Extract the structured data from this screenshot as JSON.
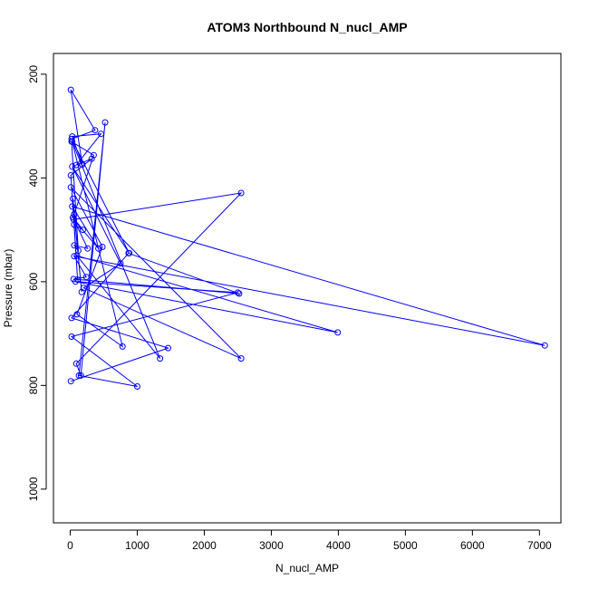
{
  "chart_data": {
    "type": "line",
    "title": "ATOM3 Northbound N_nucl_AMP",
    "xlabel": "N_nucl_AMP",
    "ylabel": "Pressure (mbar)",
    "xlim": [
      -250,
      7320
    ],
    "ylim": [
      1065,
      160
    ],
    "y_reversed": true,
    "x_ticks": [
      0,
      1000,
      2000,
      3000,
      4000,
      5000,
      6000,
      7000
    ],
    "y_ticks": [
      200,
      400,
      600,
      800,
      1000
    ],
    "grid": false,
    "legend": "none",
    "series_color": "#0000ff",
    "series": [
      {
        "x": [
          10,
          1460,
          20,
          870,
          2520,
          50,
          240,
          60,
          7080,
          30,
          420,
          50,
          2550,
          90,
          160,
          520,
          130,
          1000,
          20,
          2500,
          80,
          3990,
          100,
          1340,
          30,
          780,
          100,
          480,
          10,
          2550,
          200,
          750,
          30,
          880,
          20,
          370,
          10,
          180,
          30,
          460,
          90,
          320,
          10,
          110,
          60,
          190,
          40,
          260,
          60,
          120,
          20,
          350,
          60,
          170,
          40
        ],
        "y": [
          792,
          728,
          670,
          545,
          623,
          595,
          591,
          551,
          723,
          455,
          536,
          480,
          429,
          758,
          781,
          293,
          781,
          802,
          706,
          621,
          600,
          698,
          550,
          748,
          330,
          725,
          663,
          533,
          418,
          748,
          612,
          565,
          378,
          545,
          325,
          308,
          230,
          374,
          320,
          315,
          375,
          363,
          395,
          596,
          490,
          500,
          476,
          536,
          530,
          540,
          330,
          356,
          470,
          620,
          440
        ]
      }
    ]
  }
}
